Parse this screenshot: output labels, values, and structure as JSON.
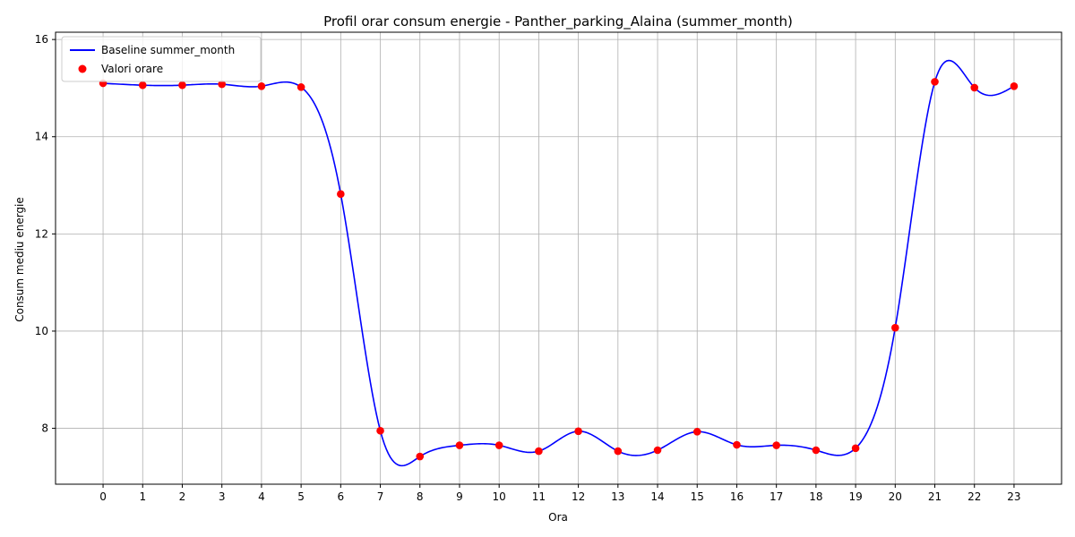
{
  "chart_data": {
    "type": "line",
    "title": "Profil orar consum energie - Panther_parking_Alaina (summer_month)",
    "xlabel": "Ora",
    "ylabel": "Consum mediu energie",
    "x": [
      0,
      1,
      2,
      3,
      4,
      5,
      6,
      7,
      8,
      9,
      10,
      11,
      12,
      13,
      14,
      15,
      16,
      17,
      18,
      19,
      20,
      21,
      22,
      23
    ],
    "xlim": [
      -1.2,
      24.2
    ],
    "ylim": [
      6.85,
      16.15
    ],
    "yticks": [
      8,
      10,
      12,
      14,
      16
    ],
    "grid": true,
    "legend_position": "upper-left",
    "series": [
      {
        "name": "Baseline summer_month",
        "kind": "smooth-line",
        "color": "#0000ff",
        "values": [
          15.1,
          15.06,
          15.06,
          15.08,
          15.04,
          15.02,
          12.82,
          7.95,
          7.42,
          7.65,
          7.65,
          7.53,
          7.94,
          7.53,
          7.55,
          7.93,
          7.66,
          7.65,
          7.55,
          7.59,
          10.07,
          15.13,
          15.01,
          15.04
        ]
      },
      {
        "name": "Valori orare",
        "kind": "scatter",
        "color": "#ff0000",
        "values": [
          15.1,
          15.06,
          15.06,
          15.08,
          15.04,
          15.02,
          12.82,
          7.95,
          7.42,
          7.65,
          7.65,
          7.53,
          7.94,
          7.53,
          7.55,
          7.93,
          7.66,
          7.65,
          7.55,
          7.59,
          10.07,
          15.13,
          15.01,
          15.04
        ]
      }
    ]
  }
}
